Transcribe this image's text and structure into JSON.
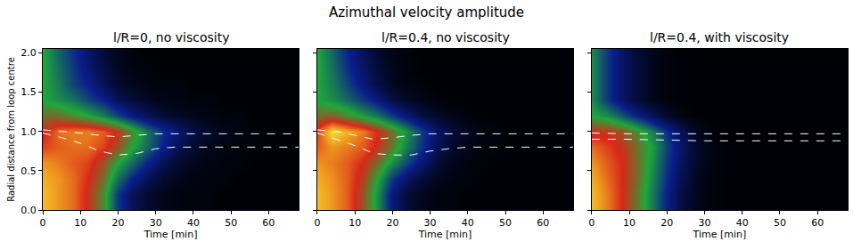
{
  "chart_data": {
    "type": "heatmap",
    "title": "Azimuthal velocity amplitude",
    "x_label": "Time [min]",
    "y_label": "Radial distance from loop centre",
    "x": [
      0,
      4,
      8,
      12,
      16,
      20,
      24,
      28,
      32,
      36,
      40,
      44,
      48,
      52,
      56,
      60,
      64,
      68
    ],
    "y": [
      0,
      0.2,
      0.4,
      0.6,
      0.8,
      1.0,
      1.2,
      1.4,
      1.6,
      1.8,
      2.0
    ],
    "zlim": [
      0,
      1
    ],
    "xlim": [
      0,
      68
    ],
    "xticks": [
      0,
      10,
      20,
      30,
      40,
      50,
      60
    ],
    "ylim": [
      0,
      2.05
    ],
    "yticks": [
      {
        "value": 0,
        "label": "0.0"
      },
      {
        "value": 0.5,
        "label": "0.5"
      },
      {
        "value": 1,
        "label": "1.0"
      },
      {
        "value": 1.5,
        "label": "1.5"
      },
      {
        "value": 2,
        "label": "2.0"
      }
    ],
    "panels": [
      {
        "subtitle": "l/R=0, no viscosity",
        "cells": [
          [
            0.9,
            0.85,
            0.8,
            0.7,
            0.55,
            0.3,
            0.15,
            0.08,
            0.05,
            0.03,
            0.02,
            0.02,
            0.01,
            0.01,
            0.01,
            0.01,
            0.01,
            0.01
          ],
          [
            0.9,
            0.85,
            0.8,
            0.7,
            0.55,
            0.3,
            0.15,
            0.08,
            0.05,
            0.03,
            0.02,
            0.02,
            0.01,
            0.01,
            0.01,
            0.01,
            0.01,
            0.01
          ],
          [
            0.88,
            0.85,
            0.8,
            0.72,
            0.6,
            0.4,
            0.25,
            0.15,
            0.08,
            0.05,
            0.03,
            0.02,
            0.02,
            0.01,
            0.01,
            0.01,
            0.01,
            0.01
          ],
          [
            0.85,
            0.82,
            0.78,
            0.75,
            0.65,
            0.5,
            0.38,
            0.25,
            0.15,
            0.08,
            0.05,
            0.03,
            0.02,
            0.02,
            0.01,
            0.01,
            0.01,
            0.01
          ],
          [
            0.75,
            0.78,
            0.8,
            0.8,
            0.75,
            0.65,
            0.5,
            0.38,
            0.25,
            0.15,
            0.08,
            0.05,
            0.03,
            0.02,
            0.02,
            0.01,
            0.01,
            0.01
          ],
          [
            0.7,
            0.8,
            0.82,
            0.82,
            0.78,
            0.7,
            0.55,
            0.4,
            0.28,
            0.2,
            0.12,
            0.08,
            0.05,
            0.03,
            0.02,
            0.02,
            0.01,
            0.01
          ],
          [
            0.6,
            0.6,
            0.55,
            0.5,
            0.42,
            0.32,
            0.22,
            0.15,
            0.1,
            0.07,
            0.05,
            0.03,
            0.02,
            0.02,
            0.01,
            0.01,
            0.01,
            0.01
          ],
          [
            0.5,
            0.45,
            0.4,
            0.32,
            0.25,
            0.15,
            0.1,
            0.06,
            0.04,
            0.03,
            0.02,
            0.02,
            0.01,
            0.01,
            0.01,
            0.01,
            0.01,
            0.01
          ],
          [
            0.5,
            0.42,
            0.32,
            0.25,
            0.15,
            0.08,
            0.05,
            0.03,
            0.02,
            0.02,
            0.01,
            0.01,
            0.01,
            0.01,
            0.01,
            0.01,
            0.01,
            0.01
          ],
          [
            0.5,
            0.4,
            0.3,
            0.2,
            0.12,
            0.06,
            0.03,
            0.02,
            0.01,
            0.01,
            0.01,
            0.01,
            0.01,
            0.01,
            0.01,
            0.01,
            0.01,
            0.01
          ],
          [
            0.5,
            0.38,
            0.28,
            0.18,
            0.1,
            0.05,
            0.02,
            0.01,
            0.01,
            0.01,
            0.01,
            0.01,
            0.01,
            0.01,
            0.01,
            0.01,
            0.01,
            0.01
          ]
        ],
        "series": [
          {
            "color": "#ffffff",
            "line_style": "dash",
            "x": [
              0,
              5,
              10,
              15,
              20,
              25,
              30,
              35,
              40,
              50,
              60,
              68
            ],
            "values": [
              1.02,
              1.0,
              0.98,
              0.95,
              0.93,
              0.95,
              0.97,
              0.97,
              0.97,
              0.97,
              0.97,
              0.97
            ]
          },
          {
            "color": "#ffffff",
            "line_style": "dash",
            "x": [
              0,
              5,
              10,
              15,
              20,
              25,
              30,
              35,
              40,
              50,
              60,
              68
            ],
            "values": [
              0.98,
              0.92,
              0.85,
              0.75,
              0.7,
              0.72,
              0.78,
              0.8,
              0.8,
              0.8,
              0.8,
              0.8
            ]
          }
        ]
      },
      {
        "subtitle": "l/R=0.4, no viscosity",
        "cells": [
          [
            0.9,
            0.85,
            0.78,
            0.65,
            0.45,
            0.22,
            0.1,
            0.05,
            0.03,
            0.02,
            0.01,
            0.01,
            0.01,
            0.01,
            0.01,
            0.01,
            0.01,
            0.01
          ],
          [
            0.9,
            0.85,
            0.78,
            0.65,
            0.45,
            0.22,
            0.1,
            0.05,
            0.03,
            0.02,
            0.01,
            0.01,
            0.01,
            0.01,
            0.01,
            0.01,
            0.01,
            0.01
          ],
          [
            0.88,
            0.84,
            0.78,
            0.68,
            0.5,
            0.3,
            0.18,
            0.1,
            0.05,
            0.03,
            0.02,
            0.01,
            0.01,
            0.01,
            0.01,
            0.01,
            0.01,
            0.01
          ],
          [
            0.85,
            0.82,
            0.78,
            0.72,
            0.6,
            0.45,
            0.32,
            0.2,
            0.1,
            0.05,
            0.03,
            0.02,
            0.01,
            0.01,
            0.01,
            0.01,
            0.01,
            0.01
          ],
          [
            0.78,
            0.85,
            0.82,
            0.78,
            0.7,
            0.58,
            0.42,
            0.28,
            0.15,
            0.08,
            0.04,
            0.02,
            0.02,
            0.01,
            0.01,
            0.01,
            0.01,
            0.01
          ],
          [
            0.75,
            0.95,
            0.88,
            0.82,
            0.72,
            0.6,
            0.45,
            0.3,
            0.18,
            0.1,
            0.06,
            0.03,
            0.02,
            0.01,
            0.01,
            0.01,
            0.01,
            0.01
          ],
          [
            0.6,
            0.62,
            0.55,
            0.48,
            0.4,
            0.3,
            0.2,
            0.12,
            0.07,
            0.04,
            0.02,
            0.01,
            0.01,
            0.01,
            0.01,
            0.01,
            0.01,
            0.01
          ],
          [
            0.5,
            0.45,
            0.38,
            0.3,
            0.22,
            0.12,
            0.07,
            0.04,
            0.02,
            0.01,
            0.01,
            0.01,
            0.01,
            0.01,
            0.01,
            0.01,
            0.01,
            0.01
          ],
          [
            0.5,
            0.42,
            0.32,
            0.22,
            0.12,
            0.06,
            0.03,
            0.02,
            0.01,
            0.01,
            0.01,
            0.01,
            0.01,
            0.01,
            0.01,
            0.01,
            0.01,
            0.01
          ],
          [
            0.5,
            0.4,
            0.28,
            0.18,
            0.1,
            0.05,
            0.02,
            0.01,
            0.01,
            0.01,
            0.01,
            0.01,
            0.01,
            0.01,
            0.01,
            0.01,
            0.01,
            0.01
          ],
          [
            0.5,
            0.38,
            0.26,
            0.16,
            0.08,
            0.04,
            0.02,
            0.01,
            0.01,
            0.01,
            0.01,
            0.01,
            0.01,
            0.01,
            0.01,
            0.01,
            0.01,
            0.01
          ]
        ],
        "series": [
          {
            "color": "#ffffff",
            "line_style": "dash",
            "x": [
              0,
              5,
              10,
              15,
              20,
              25,
              30,
              35,
              40,
              50,
              60,
              68
            ],
            "values": [
              1.02,
              1.0,
              0.95,
              0.9,
              0.92,
              0.95,
              0.97,
              0.97,
              0.97,
              0.97,
              0.97,
              0.97
            ]
          },
          {
            "color": "#ffffff",
            "line_style": "dash",
            "x": [
              0,
              5,
              10,
              15,
              20,
              25,
              30,
              35,
              40,
              50,
              60,
              68
            ],
            "values": [
              0.98,
              0.9,
              0.82,
              0.72,
              0.7,
              0.7,
              0.75,
              0.78,
              0.8,
              0.8,
              0.8,
              0.8
            ]
          }
        ]
      },
      {
        "subtitle": "l/R=0.4, with viscosity",
        "cells": [
          [
            0.9,
            0.82,
            0.72,
            0.58,
            0.42,
            0.25,
            0.12,
            0.05,
            0.02,
            0.01,
            0.01,
            0.01,
            0.01,
            0.01,
            0.01,
            0.01,
            0.01,
            0.01
          ],
          [
            0.9,
            0.82,
            0.72,
            0.58,
            0.42,
            0.25,
            0.12,
            0.05,
            0.02,
            0.01,
            0.01,
            0.01,
            0.01,
            0.01,
            0.01,
            0.01,
            0.01,
            0.01
          ],
          [
            0.88,
            0.8,
            0.72,
            0.6,
            0.44,
            0.28,
            0.14,
            0.06,
            0.02,
            0.01,
            0.01,
            0.01,
            0.01,
            0.01,
            0.01,
            0.01,
            0.01,
            0.01
          ],
          [
            0.85,
            0.78,
            0.72,
            0.6,
            0.46,
            0.3,
            0.16,
            0.07,
            0.03,
            0.01,
            0.01,
            0.01,
            0.01,
            0.01,
            0.01,
            0.01,
            0.01,
            0.01
          ],
          [
            0.8,
            0.75,
            0.7,
            0.6,
            0.48,
            0.32,
            0.18,
            0.08,
            0.03,
            0.01,
            0.01,
            0.01,
            0.01,
            0.01,
            0.01,
            0.01,
            0.01,
            0.01
          ],
          [
            0.7,
            0.7,
            0.65,
            0.55,
            0.42,
            0.28,
            0.15,
            0.06,
            0.02,
            0.01,
            0.01,
            0.01,
            0.01,
            0.01,
            0.01,
            0.01,
            0.01,
            0.01
          ],
          [
            0.5,
            0.45,
            0.35,
            0.25,
            0.15,
            0.08,
            0.03,
            0.01,
            0.01,
            0.01,
            0.01,
            0.01,
            0.01,
            0.01,
            0.01,
            0.01,
            0.01,
            0.01
          ],
          [
            0.45,
            0.3,
            0.18,
            0.1,
            0.05,
            0.02,
            0.01,
            0.01,
            0.01,
            0.01,
            0.01,
            0.01,
            0.01,
            0.01,
            0.01,
            0.01,
            0.01,
            0.01
          ],
          [
            0.45,
            0.3,
            0.18,
            0.1,
            0.05,
            0.02,
            0.01,
            0.01,
            0.01,
            0.01,
            0.01,
            0.01,
            0.01,
            0.01,
            0.01,
            0.01,
            0.01,
            0.01
          ],
          [
            0.45,
            0.3,
            0.18,
            0.1,
            0.05,
            0.02,
            0.01,
            0.01,
            0.01,
            0.01,
            0.01,
            0.01,
            0.01,
            0.01,
            0.01,
            0.01,
            0.01,
            0.01
          ],
          [
            0.45,
            0.3,
            0.18,
            0.1,
            0.05,
            0.02,
            0.01,
            0.01,
            0.01,
            0.01,
            0.01,
            0.01,
            0.01,
            0.01,
            0.01,
            0.01,
            0.01,
            0.01
          ]
        ],
        "series": [
          {
            "color": "#ffffff",
            "line_style": "dash",
            "x": [
              0,
              10,
              20,
              30,
              40,
              50,
              60,
              68
            ],
            "values": [
              0.98,
              0.97,
              0.97,
              0.97,
              0.97,
              0.97,
              0.97,
              0.97
            ]
          },
          {
            "color": "#ffffff",
            "line_style": "dash",
            "x": [
              0,
              10,
              20,
              30,
              40,
              50,
              60,
              68
            ],
            "values": [
              0.9,
              0.9,
              0.89,
              0.88,
              0.88,
              0.88,
              0.88,
              0.88
            ]
          }
        ]
      }
    ]
  }
}
